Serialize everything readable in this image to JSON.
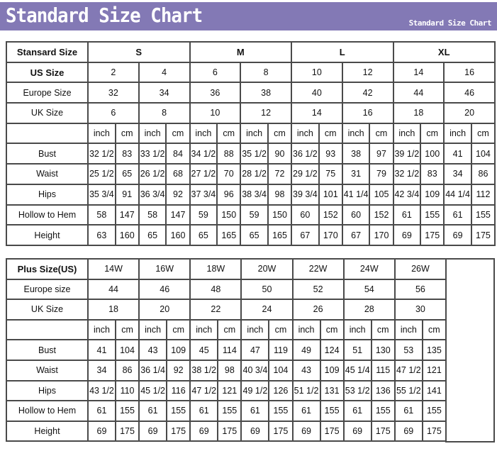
{
  "banner": {
    "title": "Standard Size Chart",
    "subtitle": "Standard Size Chart",
    "color": "#8379b5"
  },
  "standard": {
    "header_label": "Stansard Size",
    "groups": [
      "S",
      "M",
      "L",
      "XL"
    ],
    "us_label": "US Size",
    "us": [
      "2",
      "4",
      "6",
      "8",
      "10",
      "12",
      "14",
      "16"
    ],
    "europe_label": "Europe Size",
    "europe": [
      "32",
      "34",
      "36",
      "38",
      "40",
      "42",
      "44",
      "46"
    ],
    "uk_label": "UK Size",
    "uk": [
      "6",
      "8",
      "10",
      "12",
      "14",
      "16",
      "18",
      "20"
    ],
    "units": [
      "inch",
      "cm"
    ],
    "rows": [
      {
        "label": "Bust",
        "values": [
          "32 1/2",
          "83",
          "33 1/2",
          "84",
          "34 1/2",
          "88",
          "35 1/2",
          "90",
          "36 1/2",
          "93",
          "38",
          "97",
          "39 1/2",
          "100",
          "41",
          "104"
        ]
      },
      {
        "label": "Waist",
        "values": [
          "25 1/2",
          "65",
          "26 1/2",
          "68",
          "27 1/2",
          "70",
          "28 1/2",
          "72",
          "29 1/2",
          "75",
          "31",
          "79",
          "32 1/2",
          "83",
          "34",
          "86"
        ]
      },
      {
        "label": "Hips",
        "values": [
          "35 3/4",
          "91",
          "36 3/4",
          "92",
          "37 3/4",
          "96",
          "38 3/4",
          "98",
          "39 3/4",
          "101",
          "41 1/4",
          "105",
          "42 3/4",
          "109",
          "44 1/4",
          "112"
        ]
      },
      {
        "label": "Hollow to Hem",
        "values": [
          "58",
          "147",
          "58",
          "147",
          "59",
          "150",
          "59",
          "150",
          "60",
          "152",
          "60",
          "152",
          "61",
          "155",
          "61",
          "155"
        ]
      },
      {
        "label": "Height",
        "values": [
          "63",
          "160",
          "65",
          "160",
          "65",
          "165",
          "65",
          "165",
          "67",
          "170",
          "67",
          "170",
          "69",
          "175",
          "69",
          "175"
        ]
      }
    ]
  },
  "plus": {
    "header_label": "Plus Size(US)",
    "us": [
      "14W",
      "16W",
      "18W",
      "20W",
      "22W",
      "24W",
      "26W"
    ],
    "europe_label": "Europe size",
    "europe": [
      "44",
      "46",
      "48",
      "50",
      "52",
      "54",
      "56"
    ],
    "uk_label": "UK Size",
    "uk": [
      "18",
      "20",
      "22",
      "24",
      "26",
      "28",
      "30"
    ],
    "units": [
      "inch",
      "cm"
    ],
    "rows": [
      {
        "label": "Bust",
        "values": [
          "41",
          "104",
          "43",
          "109",
          "45",
          "114",
          "47",
          "119",
          "49",
          "124",
          "51",
          "130",
          "53",
          "135"
        ]
      },
      {
        "label": "Waist",
        "values": [
          "34",
          "86",
          "36 1/4",
          "92",
          "38 1/2",
          "98",
          "40 3/4",
          "104",
          "43",
          "109",
          "45 1/4",
          "115",
          "47 1/2",
          "121"
        ]
      },
      {
        "label": "Hips",
        "values": [
          "43 1/2",
          "110",
          "45 1/2",
          "116",
          "47 1/2",
          "121",
          "49 1/2",
          "126",
          "51 1/2",
          "131",
          "53 1/2",
          "136",
          "55 1/2",
          "141"
        ]
      },
      {
        "label": "Hollow to Hem",
        "values": [
          "61",
          "155",
          "61",
          "155",
          "61",
          "155",
          "61",
          "155",
          "61",
          "155",
          "61",
          "155",
          "61",
          "155"
        ]
      },
      {
        "label": "Height",
        "values": [
          "69",
          "175",
          "69",
          "175",
          "69",
          "175",
          "69",
          "175",
          "69",
          "175",
          "69",
          "175",
          "69",
          "175"
        ]
      }
    ]
  }
}
